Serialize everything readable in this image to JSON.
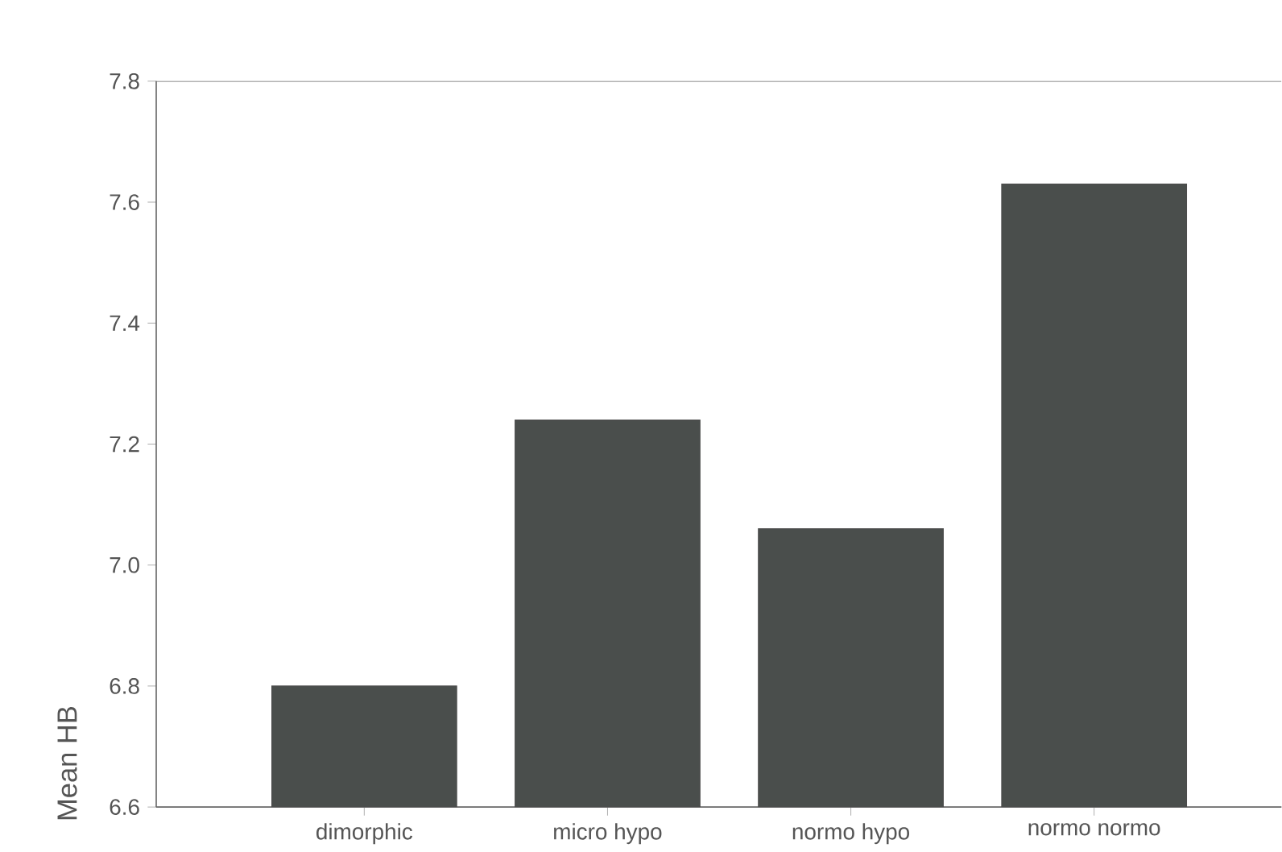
{
  "chart_data": {
    "type": "bar",
    "ylabel": "Mean HB",
    "categories": [
      "dimorphic",
      "micro hypo",
      "normo hypo",
      "normo normo"
    ],
    "values": [
      6.8,
      7.24,
      7.06,
      7.63
    ],
    "color": "#4a4e4c",
    "ylim": [
      6.6,
      7.8
    ],
    "yticks": [
      6.6,
      6.8,
      {
        "value": 7.0,
        "label": "7.0"
      },
      7.2,
      7.4,
      7.6,
      7.8
    ],
    "grid": false
  }
}
